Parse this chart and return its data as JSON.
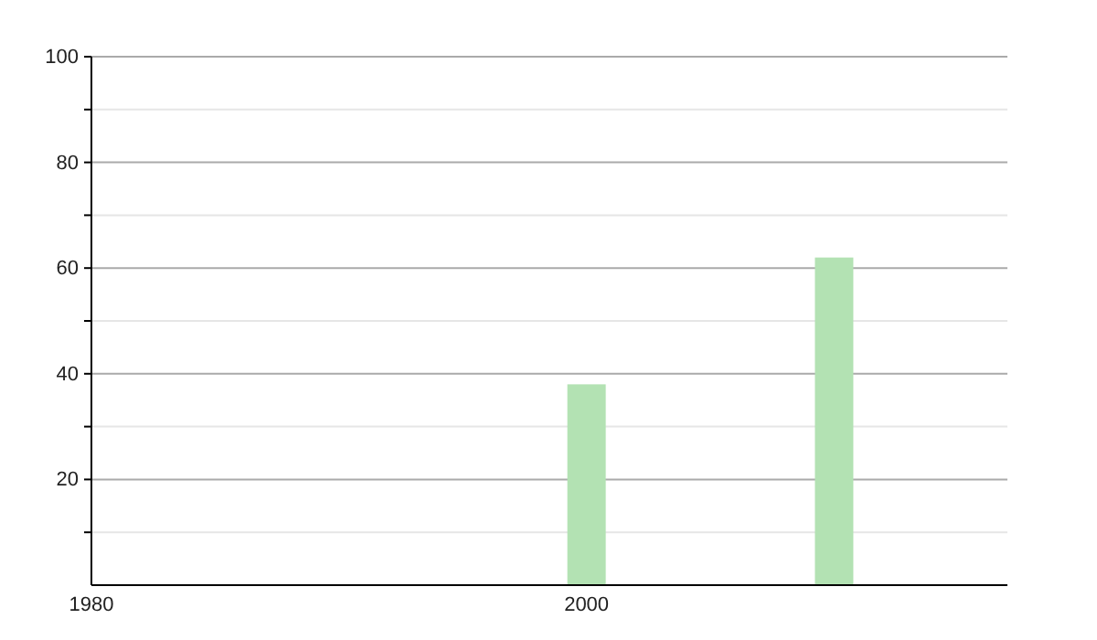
{
  "chart_data": {
    "type": "bar",
    "x": [
      2000,
      2010
    ],
    "values": [
      38,
      62
    ],
    "color": "#b3e2b3",
    "xlim": [
      1980,
      2017
    ],
    "xticks": [
      1980,
      2000
    ],
    "ylim": [
      0,
      100
    ],
    "yticks": [
      {
        "value": 10,
        "label": null
      },
      20,
      {
        "value": 30,
        "label": null
      },
      40,
      {
        "value": 50,
        "label": null
      },
      60,
      {
        "value": 70,
        "label": null
      },
      80,
      {
        "value": 90,
        "label": null
      },
      100
    ],
    "grid": true
  }
}
